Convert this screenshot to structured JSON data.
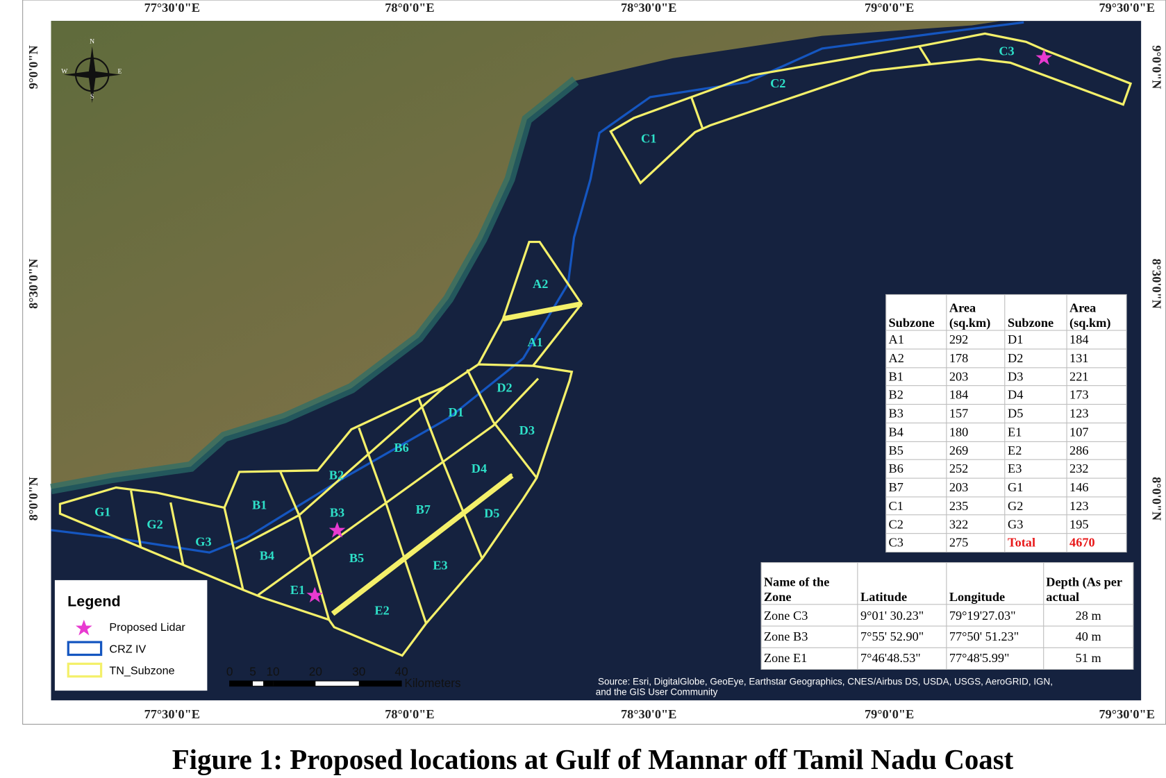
{
  "map": {
    "top_labels": [
      "77°30'0\"E",
      "78°0'0\"E",
      "78°30'0\"E",
      "79°0'0\"E",
      "79°30'0\"E"
    ],
    "bottom_labels": [
      "77°30'0\"E",
      "78°0'0\"E",
      "78°30'0\"E",
      "79°0'0\"E",
      "79°30'0\"E"
    ],
    "left_labels": [
      "9°0'0\"N",
      "8°30'0\"N",
      "8°0'0\"N"
    ],
    "right_labels": [
      "9°0'0\"N",
      "8°30'0\"N",
      "8°0'0\"N"
    ],
    "compass": [
      "N",
      "S",
      "E",
      "W"
    ],
    "zones": [
      "A2",
      "A1",
      "D2",
      "D1",
      "D3",
      "B6",
      "D4",
      "B2",
      "B1",
      "B3",
      "B7",
      "D5",
      "G1",
      "G2",
      "G3",
      "B4",
      "B5",
      "E3",
      "E1",
      "E2",
      "C1",
      "C2",
      "C3"
    ],
    "legend": {
      "title": "Legend",
      "items": [
        "Proposed Lidar",
        "CRZ IV",
        "TN_Subzone"
      ]
    },
    "scale_bar": {
      "ticks": [
        "0",
        "5",
        "10",
        "20",
        "30",
        "40"
      ],
      "unit": "Kilometers"
    },
    "source": [
      "Source: Esri, DigitalGlobe, GeoEye, Earthstar Geographics, CNES/Airbus DS, USDA, USGS, AeroGRID, IGN,",
      "and the GIS User Community"
    ]
  },
  "area_table": {
    "headers": [
      "Subzone",
      "Area (sq.km)",
      "Subzone",
      "Area (sq.km)"
    ],
    "rows": [
      [
        "A1",
        292,
        "D1",
        184
      ],
      [
        "A2",
        178,
        "D2",
        131
      ],
      [
        "B1",
        203,
        "D3",
        221
      ],
      [
        "B2",
        184,
        "D4",
        173
      ],
      [
        "B3",
        157,
        "D5",
        123
      ],
      [
        "B4",
        180,
        "E1",
        107
      ],
      [
        "B5",
        269,
        "E2",
        286
      ],
      [
        "B6",
        252,
        "E3",
        232
      ],
      [
        "B7",
        203,
        "G1",
        146
      ],
      [
        "C1",
        235,
        "G2",
        123
      ],
      [
        "C2",
        322,
        "G3",
        195
      ],
      [
        "C3",
        275,
        "Total",
        4670
      ]
    ]
  },
  "location_table": {
    "headers": [
      "Name of the Zone",
      "Latitude",
      "Longitude",
      "Depth (As per actual"
    ],
    "rows": [
      [
        "Zone C3",
        "9°01' 30.23\"",
        "79°19'27.03\"",
        "28 m"
      ],
      [
        "Zone B3",
        "7°55' 52.90\"",
        "77°50' 51.23\"",
        "40 m"
      ],
      [
        "Zone E1",
        "7°46'48.53\"",
        "77°48'5.99\"",
        "51 m"
      ]
    ]
  },
  "caption": "Figure 1: Proposed locations at Gulf of Mannar off Tamil Nadu Coast"
}
